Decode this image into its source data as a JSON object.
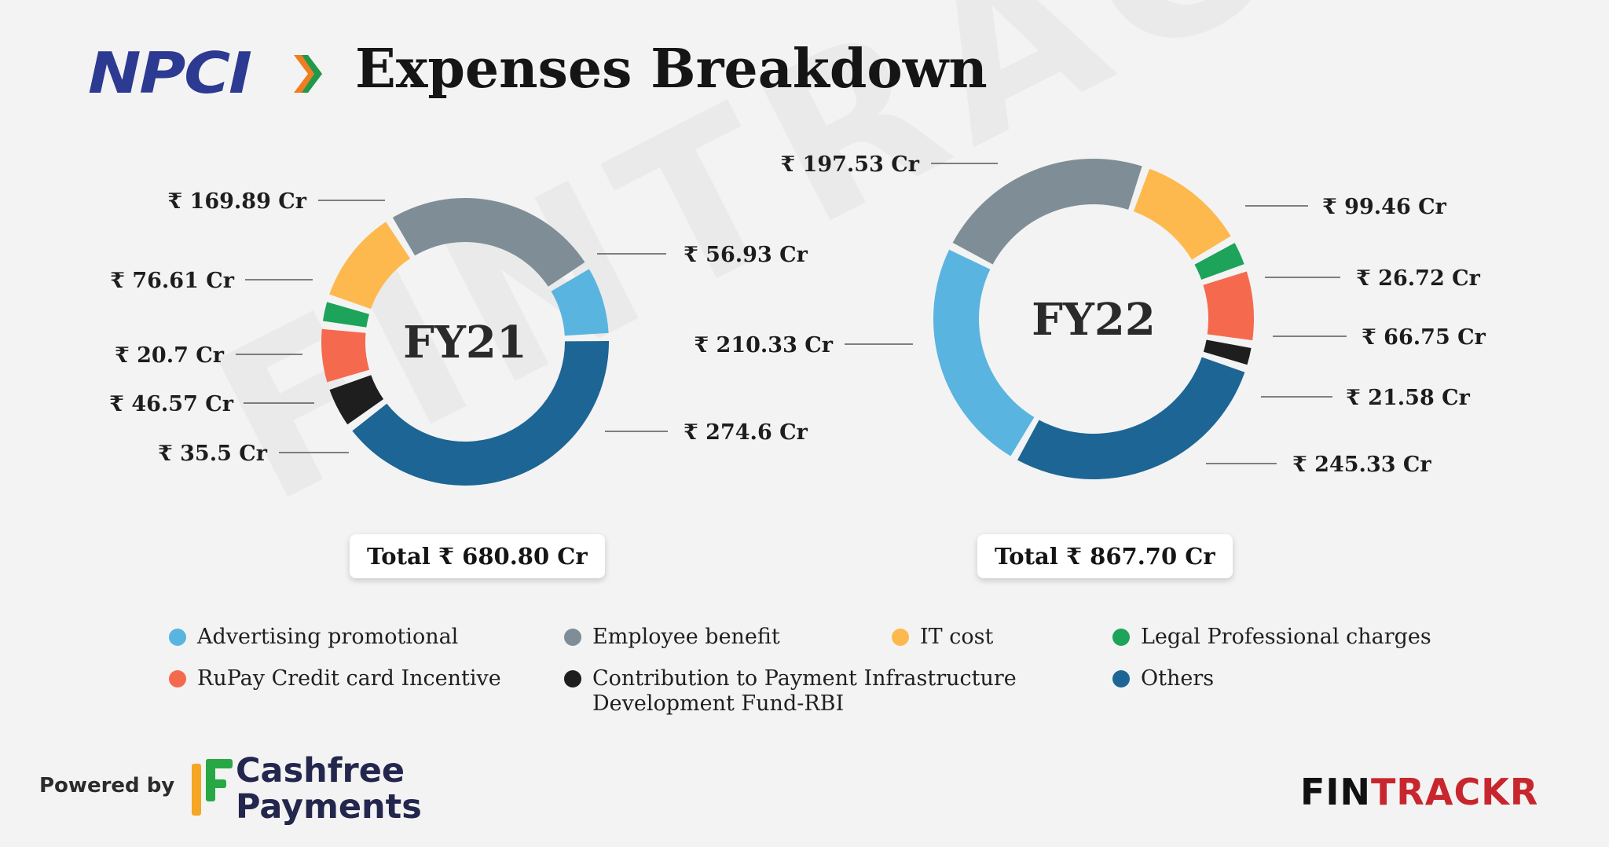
{
  "title": "Expenses Breakdown",
  "logos": {
    "npci": "NPCI",
    "powered_by": "Powered by",
    "cashfree_line1": "Cashfree",
    "cashfree_line2": "Payments",
    "fintrackr_a": "FIN",
    "fintrackr_b": "TRACKR",
    "watermark": "FINTRACKR"
  },
  "colors": {
    "advertising": "#5ab4e0",
    "employee": "#7f8e96",
    "it": "#fdb94e",
    "legal": "#1ea35a",
    "rupay": "#f56a4f",
    "contribution": "#1e1e1e",
    "others": "#1d6595"
  },
  "chart_data": [
    {
      "type": "donut",
      "center_label": "FY21",
      "total_label": "Total ₹ 680.80 Cr",
      "categories": [
        "Advertising promotional",
        "Others",
        "Contribution to Payment Infrastructure Development Fund-RBI",
        "RuPay Credit card Incentive",
        "Legal Professional charges",
        "IT cost",
        "Employee benefit"
      ],
      "values": [
        56.93,
        274.6,
        35.5,
        46.57,
        20.7,
        76.61,
        169.89
      ],
      "value_labels": [
        "₹ 56.93 Cr",
        "₹ 274.6 Cr",
        "₹ 35.5 Cr",
        "₹ 46.57 Cr",
        "₹ 20.7 Cr",
        "₹ 76.61 Cr",
        "₹ 169.89 Cr"
      ],
      "color_keys": [
        "advertising",
        "others",
        "contribution",
        "rupay",
        "legal",
        "it",
        "employee"
      ]
    },
    {
      "type": "donut",
      "center_label": "FY22",
      "total_label": "Total ₹ 867.70 Cr",
      "categories": [
        "IT cost",
        "Legal Professional charges",
        "RuPay Credit card Incentive",
        "Contribution to Payment Infrastructure Development Fund-RBI",
        "Others",
        "Advertising promotional",
        "Employee benefit"
      ],
      "values": [
        99.46,
        26.72,
        66.75,
        21.58,
        245.33,
        210.33,
        197.53
      ],
      "value_labels": [
        "₹ 99.46 Cr",
        "₹ 26.72 Cr",
        "₹ 66.75 Cr",
        "₹ 21.58 Cr",
        "₹ 245.33 Cr",
        "₹ 210.33 Cr",
        "₹ 197.53 Cr"
      ],
      "color_keys": [
        "it",
        "legal",
        "rupay",
        "contribution",
        "others",
        "advertising",
        "employee"
      ]
    }
  ],
  "legend": [
    {
      "label": "Advertising promotional",
      "color_key": "advertising"
    },
    {
      "label": "Employee benefit",
      "color_key": "employee"
    },
    {
      "label": "IT cost",
      "color_key": "it"
    },
    {
      "label": "Legal Professional charges",
      "color_key": "legal"
    },
    {
      "label": "RuPay Credit card Incentive",
      "color_key": "rupay"
    },
    {
      "label": "Contribution to Payment Infrastructure Development Fund-RBI",
      "color_key": "contribution"
    },
    {
      "label": "Others",
      "color_key": "others"
    }
  ]
}
